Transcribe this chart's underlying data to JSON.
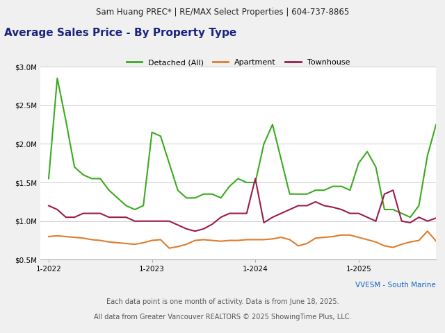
{
  "header": "Sam Huang PREC* | RE/MAX Select Properties | 604-737-8865",
  "title": "Average Sales Price - By Property Type",
  "footer1": "VVESM - South Marine",
  "footer2": "Each data point is one month of activity. Data is from June 18, 2025.",
  "footer3": "All data from Greater Vancouver REALTORS © 2025 ShowingTime Plus, LLC.",
  "colors": {
    "Detached (All)": "#3aaa1e",
    "Apartment": "#e07b2a",
    "Townhouse": "#9b1a4a"
  },
  "ylim": [
    500000,
    3000000
  ],
  "yticks": [
    500000,
    1000000,
    1500000,
    2000000,
    2500000,
    3000000
  ],
  "plot_bg": "#ffffff",
  "fig_bg": "#f0f0f0",
  "header_bg": "#e0e0e0",
  "title_color": "#1a237e",
  "footer1_color": "#1565c0",
  "footer_color": "#555555",
  "detached": [
    1550000,
    2850000,
    2300000,
    1700000,
    1600000,
    1550000,
    1550000,
    1400000,
    1300000,
    1200000,
    1150000,
    1200000,
    2150000,
    2100000,
    1750000,
    1400000,
    1300000,
    1300000,
    1350000,
    1350000,
    1300000,
    1450000,
    1550000,
    1500000,
    1500000,
    2000000,
    2250000,
    1800000,
    1350000,
    1350000,
    1350000,
    1400000,
    1400000,
    1450000,
    1450000,
    1400000,
    1750000,
    1900000,
    1700000,
    1150000,
    1150000,
    1100000,
    1050000,
    1200000,
    1850000,
    2250000
  ],
  "apartment": [
    800000,
    810000,
    800000,
    790000,
    780000,
    760000,
    750000,
    730000,
    720000,
    710000,
    700000,
    720000,
    750000,
    760000,
    650000,
    670000,
    700000,
    750000,
    760000,
    750000,
    740000,
    750000,
    750000,
    760000,
    760000,
    760000,
    770000,
    790000,
    760000,
    680000,
    710000,
    780000,
    790000,
    800000,
    820000,
    820000,
    790000,
    760000,
    730000,
    680000,
    660000,
    700000,
    730000,
    750000,
    870000,
    740000
  ],
  "townhouse": [
    1200000,
    1150000,
    1050000,
    1050000,
    1100000,
    1100000,
    1100000,
    1050000,
    1050000,
    1050000,
    1000000,
    1000000,
    1000000,
    1000000,
    1000000,
    950000,
    900000,
    870000,
    900000,
    960000,
    1050000,
    1100000,
    1100000,
    1100000,
    1550000,
    980000,
    1050000,
    1100000,
    1150000,
    1200000,
    1200000,
    1250000,
    1200000,
    1180000,
    1150000,
    1100000,
    1100000,
    1050000,
    1000000,
    1350000,
    1400000,
    1000000,
    980000,
    1050000,
    1000000,
    1040000
  ],
  "n_months": 46,
  "xtick_positions": [
    0,
    12,
    24,
    36
  ],
  "xtick_labels": [
    "1-2022",
    "1-2023",
    "1-2024",
    "1-2025"
  ]
}
